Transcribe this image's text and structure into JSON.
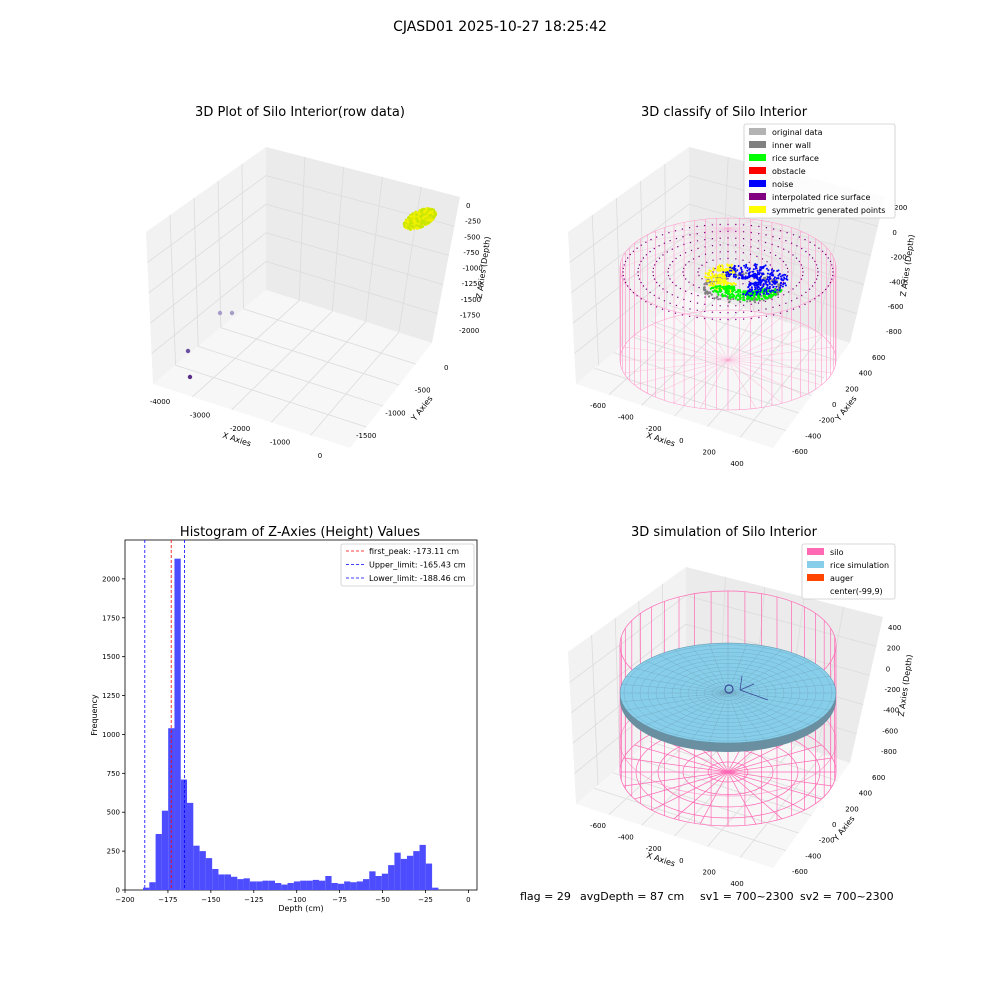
{
  "suptitle": "CJASD01 2025-10-27 18:25:42",
  "footer": {
    "flag": "flag = 29",
    "avg_depth": "avgDepth = 87 cm",
    "sv1": "sv1 = 700~2300",
    "sv2": "sv2 = 700~2300"
  },
  "colors": {
    "original_data": "#b3b3b3",
    "inner_wall": "#808080",
    "rice_surface": "#00ff00",
    "obstacle": "#ff0000",
    "noise": "#0000ff",
    "interpolated_rice_surface": "#800080",
    "symmetric_generated_points": "#ffff00",
    "silo": "#ff69b4",
    "rice_simulation": "#87ceeb",
    "auger": "#ff4500",
    "histogram_bar": "#4d4dff"
  },
  "chart_data": [
    {
      "type": "scatter3d",
      "title": "3D Plot of Silo Interior(row data)",
      "xlabel": "X Axies",
      "ylabel": "Y Axies",
      "zlabel": "Z Axies (Depth)",
      "xticks": [
        "-4000",
        "-3000",
        "-2000",
        "-1000",
        "0"
      ],
      "yticks": [
        "0",
        "-500",
        "-1000",
        "-1500"
      ],
      "zticks": [
        "0",
        "-250",
        "-500",
        "-750",
        "-1000",
        "-1250",
        "-1500",
        "-1750",
        "-2000"
      ],
      "outliers": [
        {
          "x": -3600,
          "y": -200,
          "z": -1600
        },
        {
          "x": -3400,
          "y": -100,
          "z": -1600
        },
        {
          "x": -4100,
          "y": -300,
          "z": -2000
        },
        {
          "x": -4100,
          "y": -300,
          "z": -2100
        }
      ],
      "cluster": {
        "x_range": [
          -300,
          100
        ],
        "y_range": [
          -200,
          200
        ],
        "z_range": [
          -200,
          0
        ]
      }
    },
    {
      "type": "scatter3d",
      "title": "3D classify of Silo Interior",
      "xlabel": "X Axies",
      "ylabel": "Y Axies",
      "zlabel": "Z Axies (Depth)",
      "xticks": [
        "-600",
        "-400",
        "-200",
        "0",
        "200",
        "400"
      ],
      "yticks": [
        "600",
        "400",
        "200",
        "0",
        "-200",
        "-400",
        "-600"
      ],
      "zticks": [
        "200",
        "0",
        "-200",
        "-400",
        "-600",
        "-800"
      ],
      "legend": [
        "original data",
        "inner wall",
        "rice surface",
        "obstacle",
        "noise",
        "interpolated rice surface",
        "symmetric generated points"
      ],
      "legend_loc": "upper right"
    },
    {
      "type": "bar",
      "title": "Histogram of Z-Axies (Height) Values",
      "xlabel": "Depth (cm)",
      "ylabel": "Frequency",
      "xlim": [
        -200,
        5
      ],
      "ylim": [
        0,
        2250
      ],
      "xticks": [
        -200,
        -175,
        -150,
        -125,
        -100,
        -75,
        -50,
        -25,
        0
      ],
      "yticks": [
        0,
        250,
        500,
        750,
        1000,
        1250,
        1500,
        1750,
        2000
      ],
      "bin_start": -189.5,
      "bin_width": 3.66,
      "values": [
        15,
        50,
        360,
        510,
        1040,
        2130,
        710,
        560,
        285,
        250,
        205,
        135,
        100,
        100,
        85,
        70,
        75,
        55,
        55,
        60,
        60,
        45,
        35,
        45,
        55,
        60,
        60,
        65,
        60,
        90,
        45,
        40,
        55,
        50,
        55,
        70,
        120,
        90,
        105,
        160,
        240,
        200,
        220,
        250,
        290,
        170,
        15
      ],
      "vlines": [
        {
          "label": "first_peak: -173.11 cm",
          "x": -173.11,
          "color": "#ff0000"
        },
        {
          "label": "Upper_limit: -165.43 cm",
          "x": -165.43,
          "color": "#0000ff"
        },
        {
          "label": "Lower_limit: -188.46 cm",
          "x": -188.46,
          "color": "#0000ff"
        }
      ],
      "legend_loc": "upper right"
    },
    {
      "type": "surface3d",
      "title": "3D simulation of Silo Interior",
      "xlabel": "X Axies",
      "ylabel": "Y Axies",
      "zlabel": "Z Axies (Depth)",
      "xticks": [
        "-600",
        "-400",
        "-200",
        "0",
        "200",
        "400"
      ],
      "yticks": [
        "600",
        "400",
        "200",
        "0",
        "-200",
        "-400",
        "-600"
      ],
      "zticks": [
        "400",
        "200",
        "0",
        "-200",
        "-400",
        "-600",
        "-800"
      ],
      "legend": [
        "silo",
        "rice simulation",
        "auger",
        "center(-99,9)"
      ],
      "legend_loc": "upper right"
    }
  ]
}
